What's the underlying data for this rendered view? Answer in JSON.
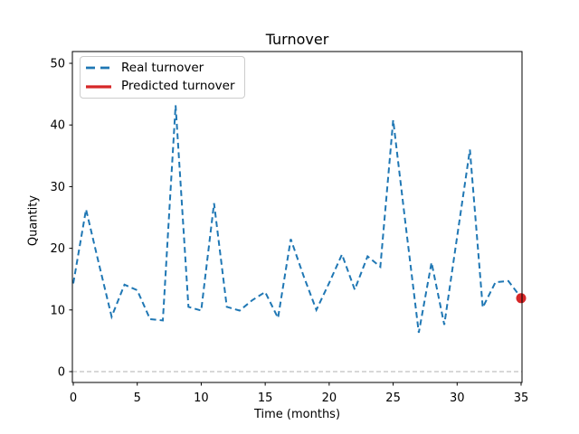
{
  "figure": {
    "title": "Turnover",
    "xlabel": "Time (months)",
    "ylabel": "Quantity"
  },
  "legend": {
    "position": "upper left",
    "items": [
      {
        "label": "Real turnover",
        "color": "#1f77b4",
        "style": "dashed"
      },
      {
        "label": "Predicted turnover",
        "color": "#d62728",
        "style": "solid"
      }
    ]
  },
  "chart_data": {
    "type": "line",
    "title": "Turnover",
    "xlabel": "Time (months)",
    "ylabel": "Quantity",
    "xlim": [
      -0.07,
      35.07
    ],
    "ylim": [
      -1.76,
      51.91
    ],
    "xticks": [
      0,
      5,
      10,
      15,
      20,
      25,
      30,
      35
    ],
    "yticks": [
      0,
      10,
      20,
      30,
      40,
      50
    ],
    "grid": false,
    "zero_line": {
      "y": 0,
      "color": "#b0b0b0",
      "style": "dashed"
    },
    "series": [
      {
        "name": "Real turnover",
        "color": "#1f77b4",
        "style": "dashed",
        "x": [
          0,
          1,
          2,
          3,
          4,
          5,
          6,
          7,
          8,
          9,
          10,
          11,
          12,
          13,
          14,
          15,
          16,
          17,
          18,
          19,
          20,
          21,
          22,
          23,
          24,
          25,
          26,
          27,
          28,
          29,
          30,
          31,
          32,
          33,
          34,
          35
        ],
        "y": [
          14.3,
          26.3,
          17.5,
          8.9,
          14.1,
          13.2,
          8.5,
          8.3,
          43.2,
          10.5,
          9.9,
          27.3,
          10.5,
          9.9,
          11.6,
          12.9,
          8.7,
          21.5,
          15.5,
          10.0,
          14.4,
          19.0,
          13.3,
          18.7,
          17.0,
          40.8,
          23.4,
          6.3,
          17.7,
          7.6,
          21.9,
          36.0,
          10.4,
          14.5,
          14.7,
          12.0
        ]
      },
      {
        "name": "Predicted turnover",
        "color": "#d62728",
        "style": "solid",
        "marker": "circle",
        "x": [
          35
        ],
        "y": [
          11.9
        ]
      }
    ]
  }
}
